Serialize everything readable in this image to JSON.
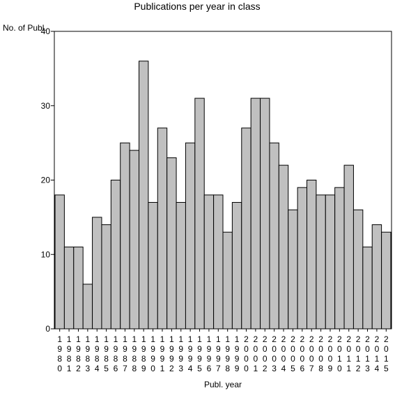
{
  "chart_data": {
    "type": "bar",
    "title": "Publications per year in class",
    "ylabel": "No. of Publ.",
    "xlabel": "Publ. year",
    "ylim": [
      0,
      40
    ],
    "yticks": [
      0,
      10,
      20,
      30,
      40
    ],
    "categories": [
      "1980",
      "1981",
      "1982",
      "1983",
      "1984",
      "1985",
      "1986",
      "1987",
      "1988",
      "1989",
      "1990",
      "1991",
      "1992",
      "1993",
      "1994",
      "1995",
      "1996",
      "1997",
      "1998",
      "1999",
      "2000",
      "2001",
      "2002",
      "2003",
      "2004",
      "2005",
      "2006",
      "2007",
      "2008",
      "2009",
      "2010",
      "2011",
      "2012",
      "2013",
      "2014",
      "2015"
    ],
    "values": [
      18,
      11,
      11,
      6,
      15,
      14,
      20,
      25,
      24,
      36,
      17,
      27,
      23,
      17,
      25,
      31,
      18,
      18,
      13,
      17,
      27,
      31,
      31,
      25,
      22,
      16,
      19,
      20,
      18,
      18,
      19,
      22,
      16,
      11,
      14,
      13
    ],
    "bar_color": "#c0c0c0",
    "grid": false
  }
}
